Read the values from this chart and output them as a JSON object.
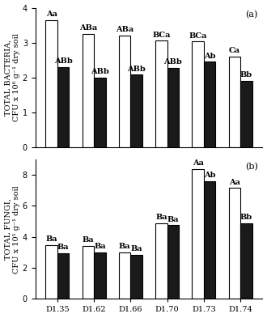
{
  "categories": [
    "D1.35",
    "D1.62",
    "D1.66",
    "D1.70",
    "D1.73",
    "D1.74"
  ],
  "bacteria_white": [
    3.65,
    3.25,
    3.2,
    3.05,
    3.03,
    2.6
  ],
  "bacteria_black": [
    2.3,
    2.0,
    2.08,
    2.28,
    2.45,
    1.9
  ],
  "bacteria_white_labels": [
    "Aa",
    "ABa",
    "ABa",
    "BCa",
    "BCa",
    "Ca"
  ],
  "bacteria_black_labels": [
    "ABb",
    "ABb",
    "ABb",
    "ABb",
    "Ab",
    "Bb"
  ],
  "bacteria_ylabel_line1": "TOTAL BACTERIA,",
  "bacteria_ylabel_line2": "CFU x 10⁶ g⁻¹ dry soil",
  "bacteria_ylim": [
    0,
    4
  ],
  "bacteria_yticks": [
    0,
    1,
    2,
    3,
    4
  ],
  "fungi_white": [
    3.45,
    3.4,
    3.0,
    4.9,
    8.4,
    7.15
  ],
  "fungi_black": [
    2.95,
    3.0,
    2.85,
    4.75,
    7.6,
    4.9
  ],
  "fungi_white_labels": [
    "Ba",
    "Ba",
    "Ba",
    "Ba",
    "Aa",
    "Aa"
  ],
  "fungi_black_labels": [
    "Ba",
    "Ba",
    "Ba",
    "Ba",
    "Ab",
    "Bb"
  ],
  "fungi_ylabel_line1": "TOTAL FUNGI,",
  "fungi_ylabel_line2": "CFU x 10⁵ g⁻¹ dry soil",
  "fungi_ylim": [
    0,
    9
  ],
  "fungi_yticks": [
    0,
    2,
    4,
    6,
    8
  ],
  "bar_width": 0.32,
  "white_color": "#ffffff",
  "black_color": "#1a1a1a",
  "edge_color": "#000000",
  "label_a": "(a)",
  "label_b": "(b)",
  "label_fontsize": 8,
  "tick_fontsize": 7,
  "ylabel_fontsize": 7,
  "annotation_fontsize": 7,
  "figure_facecolor": "#ffffff"
}
